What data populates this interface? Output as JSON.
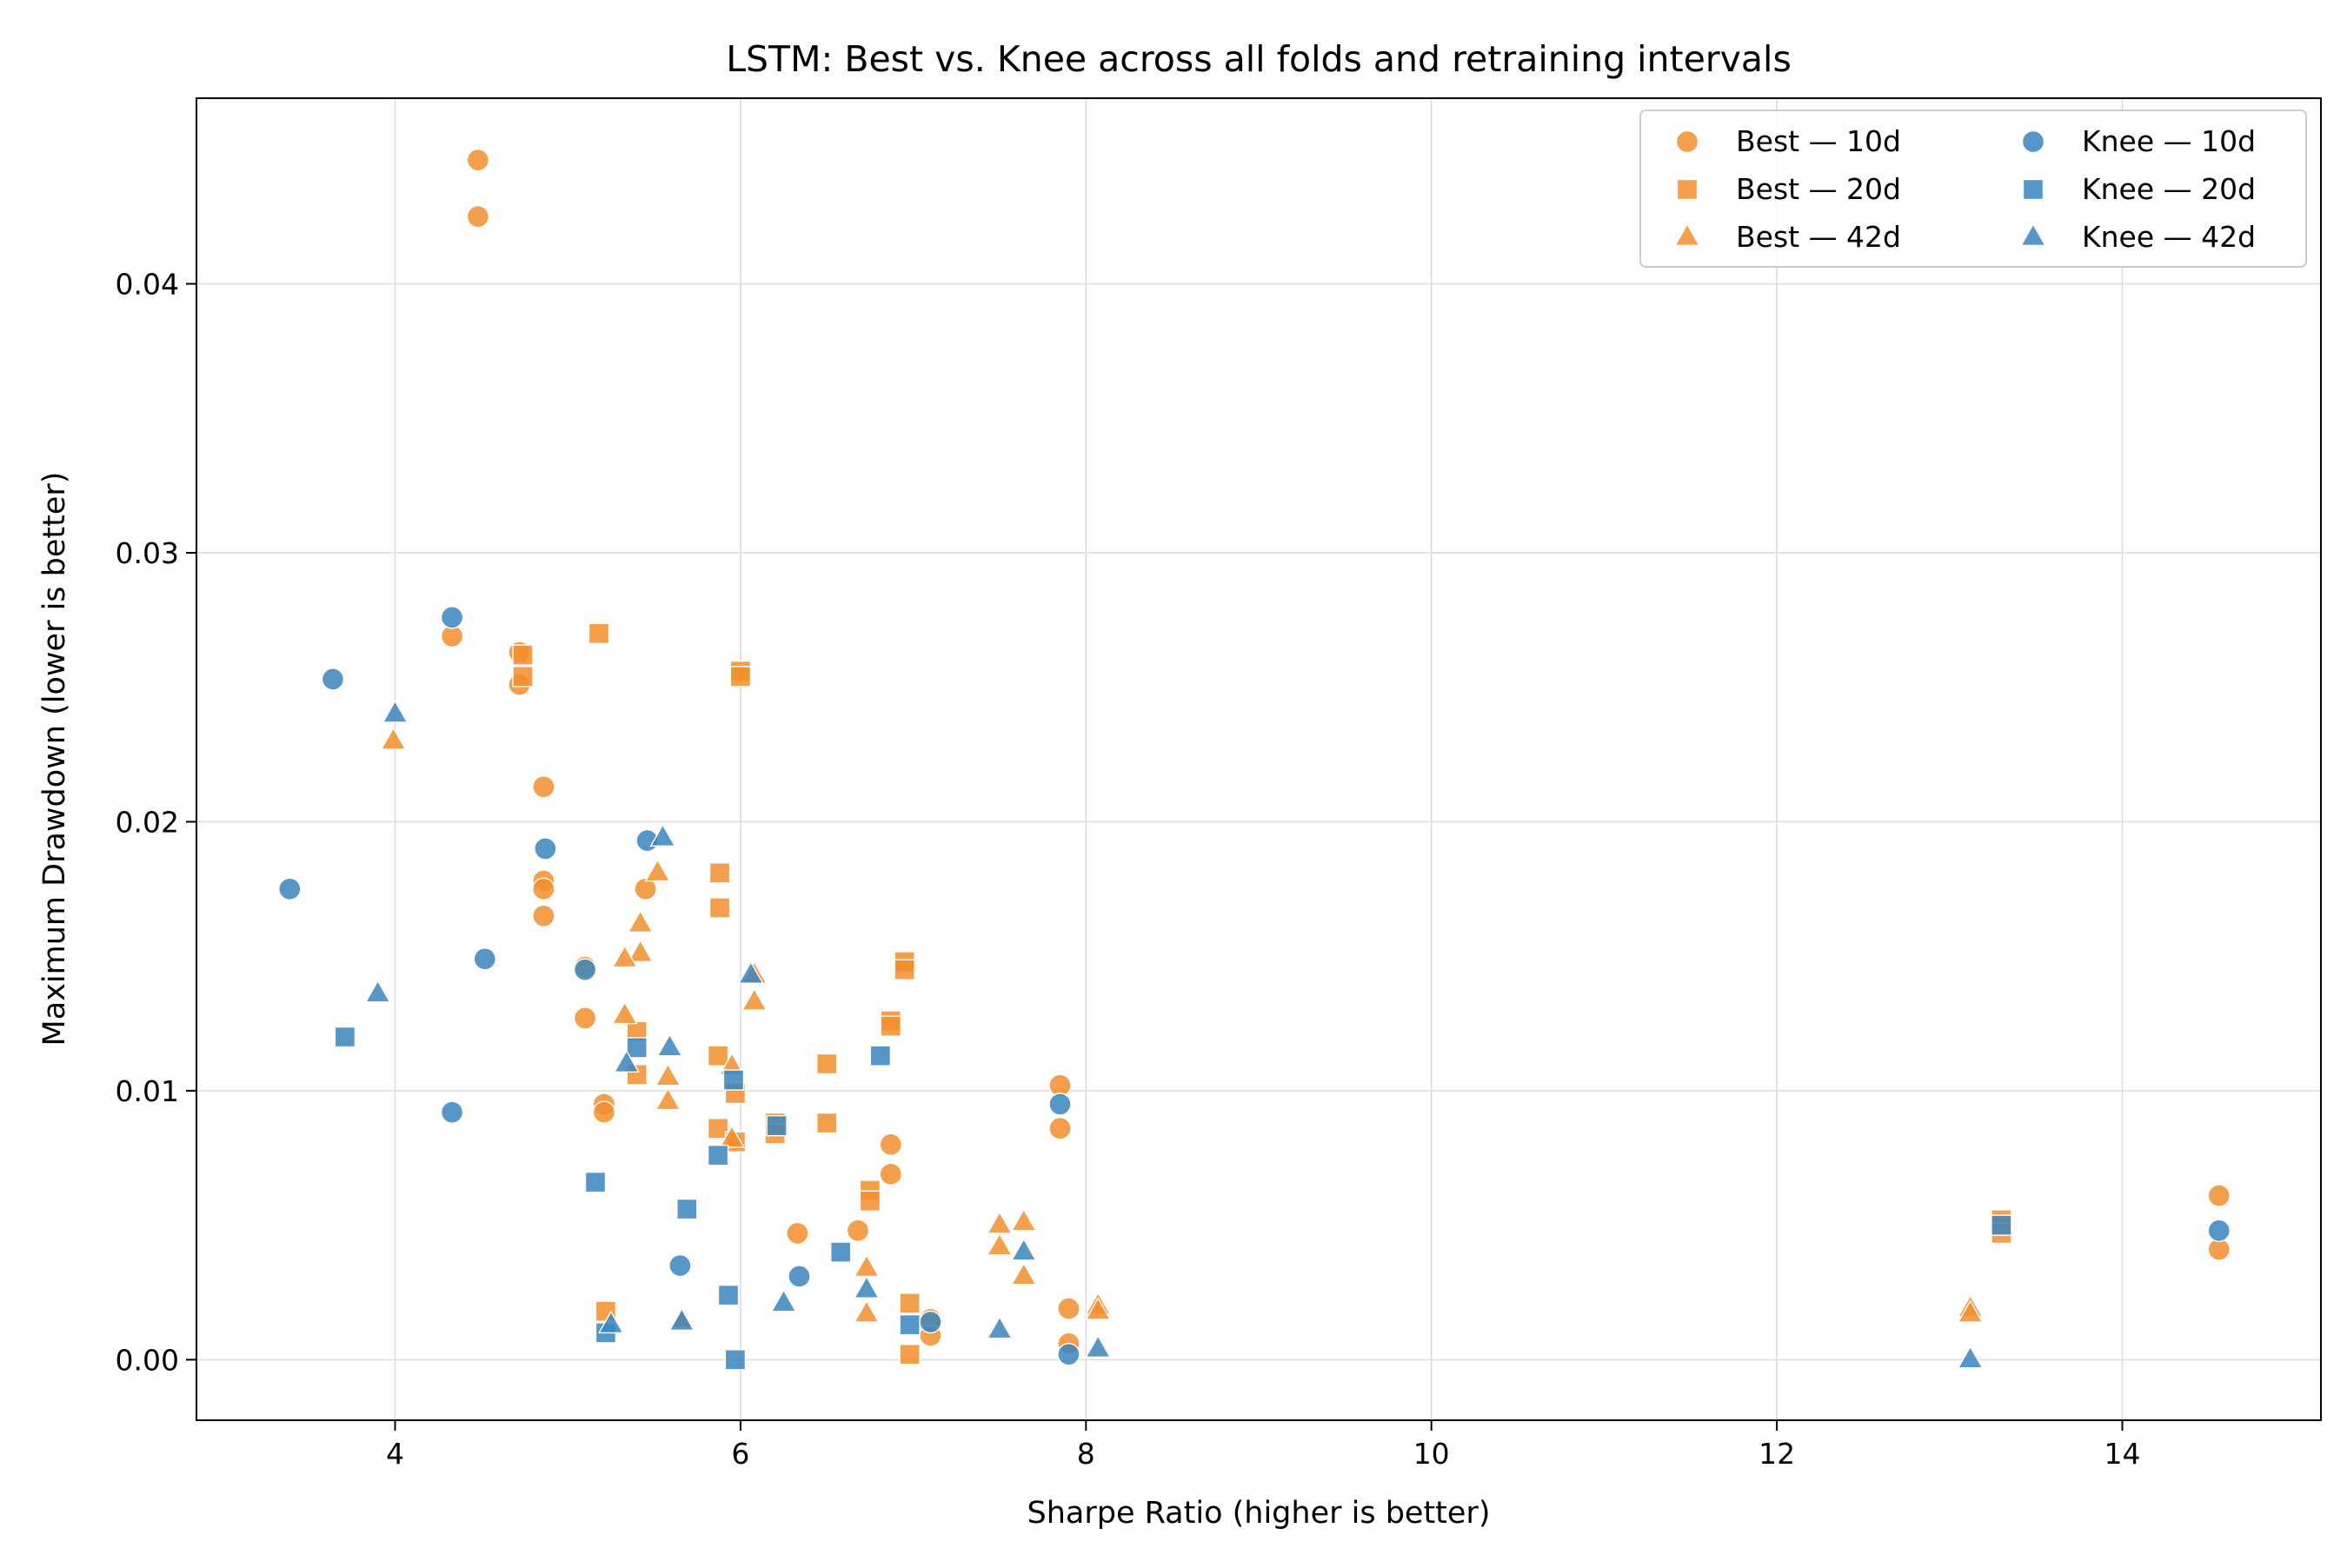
{
  "chart_data": {
    "type": "scatter",
    "title": "LSTM: Best vs. Knee across all folds and retraining intervals",
    "xlabel": "Sharpe Ratio (higher is better)",
    "ylabel": "Maximum Drawdown (lower is better)",
    "xlim": [
      2.85,
      15.15
    ],
    "ylim": [
      -0.00225,
      0.0469
    ],
    "xticks": [
      4,
      6,
      8,
      10,
      12,
      14
    ],
    "yticks": [
      0.0,
      0.01,
      0.02,
      0.03,
      0.04
    ],
    "xtick_labels": [
      "4",
      "6",
      "8",
      "10",
      "12",
      "14"
    ],
    "ytick_labels": [
      "0.00",
      "0.01",
      "0.02",
      "0.03",
      "0.04"
    ],
    "grid": true,
    "legend_position": "top-right",
    "colors": {
      "best": "#f28e2b",
      "knee": "#3a85bd"
    },
    "series": [
      {
        "name": "Best — 10d",
        "marker": "circle",
        "color": "#f28e2b",
        "points": [
          [
            4.48,
            0.0446
          ],
          [
            4.48,
            0.0425
          ],
          [
            4.33,
            0.0269
          ],
          [
            4.72,
            0.0263
          ],
          [
            4.72,
            0.0251
          ],
          [
            4.86,
            0.0213
          ],
          [
            4.86,
            0.0178
          ],
          [
            4.86,
            0.0175
          ],
          [
            4.86,
            0.0165
          ],
          [
            5.45,
            0.0175
          ],
          [
            5.1,
            0.0146
          ],
          [
            5.1,
            0.0127
          ],
          [
            5.21,
            0.0095
          ],
          [
            5.21,
            0.0092
          ],
          [
            6.33,
            0.0047
          ],
          [
            6.68,
            0.0048
          ],
          [
            6.87,
            0.008
          ],
          [
            6.87,
            0.0069
          ],
          [
            7.85,
            0.0102
          ],
          [
            7.85,
            0.0086
          ],
          [
            7.9,
            0.0019
          ],
          [
            7.9,
            0.0006
          ],
          [
            7.1,
            0.0015
          ],
          [
            7.1,
            0.0009
          ],
          [
            14.56,
            0.0061
          ],
          [
            14.56,
            0.0041
          ]
        ]
      },
      {
        "name": "Best — 20d",
        "marker": "square",
        "color": "#f28e2b",
        "points": [
          [
            5.18,
            0.027
          ],
          [
            4.74,
            0.0262
          ],
          [
            4.74,
            0.0254
          ],
          [
            6.0,
            0.0256
          ],
          [
            6.0,
            0.0254
          ],
          [
            5.88,
            0.0181
          ],
          [
            5.88,
            0.0168
          ],
          [
            5.4,
            0.0122
          ],
          [
            5.4,
            0.0106
          ],
          [
            5.87,
            0.0113
          ],
          [
            5.87,
            0.0086
          ],
          [
            5.97,
            0.0099
          ],
          [
            5.97,
            0.0081
          ],
          [
            6.2,
            0.0088
          ],
          [
            6.2,
            0.0084
          ],
          [
            6.5,
            0.011
          ],
          [
            6.5,
            0.0088
          ],
          [
            6.75,
            0.0063
          ],
          [
            6.75,
            0.0059
          ],
          [
            6.87,
            0.0126
          ],
          [
            6.87,
            0.0124
          ],
          [
            6.95,
            0.0148
          ],
          [
            6.95,
            0.0145
          ],
          [
            6.98,
            0.0021
          ],
          [
            6.98,
            0.0002
          ],
          [
            5.22,
            0.0018
          ],
          [
            13.3,
            0.0052
          ],
          [
            13.3,
            0.0047
          ]
        ]
      },
      {
        "name": "Best — 42d",
        "marker": "triangle",
        "color": "#f28e2b",
        "points": [
          [
            3.99,
            0.023
          ],
          [
            5.52,
            0.0181
          ],
          [
            5.42,
            0.0162
          ],
          [
            5.42,
            0.0151
          ],
          [
            5.33,
            0.0149
          ],
          [
            5.33,
            0.0128
          ],
          [
            5.58,
            0.0105
          ],
          [
            5.58,
            0.0096
          ],
          [
            5.95,
            0.0109
          ],
          [
            5.95,
            0.0082
          ],
          [
            6.08,
            0.0143
          ],
          [
            6.08,
            0.0133
          ],
          [
            7.5,
            0.005
          ],
          [
            7.5,
            0.0042
          ],
          [
            7.64,
            0.0051
          ],
          [
            7.64,
            0.0031
          ],
          [
            6.73,
            0.0034
          ],
          [
            6.73,
            0.0017
          ],
          [
            8.07,
            0.002
          ],
          [
            8.07,
            0.0018
          ],
          [
            13.12,
            0.0019
          ],
          [
            13.12,
            0.0017
          ],
          [
            5.66,
            0.0015
          ]
        ]
      },
      {
        "name": "Knee — 10d",
        "marker": "circle",
        "color": "#3a85bd",
        "points": [
          [
            3.39,
            0.0175
          ],
          [
            3.64,
            0.0253
          ],
          [
            4.33,
            0.0276
          ],
          [
            4.33,
            0.0092
          ],
          [
            4.52,
            0.0149
          ],
          [
            4.87,
            0.019
          ],
          [
            5.1,
            0.0145
          ],
          [
            5.46,
            0.0193
          ],
          [
            5.65,
            0.0035
          ],
          [
            6.34,
            0.0031
          ],
          [
            7.1,
            0.0014
          ],
          [
            7.85,
            0.0095
          ],
          [
            7.9,
            0.0002
          ],
          [
            14.56,
            0.0048
          ]
        ]
      },
      {
        "name": "Knee — 20d",
        "marker": "square",
        "color": "#3a85bd",
        "points": [
          [
            3.71,
            0.012
          ],
          [
            5.16,
            0.0066
          ],
          [
            5.22,
            0.001
          ],
          [
            5.4,
            0.0116
          ],
          [
            5.69,
            0.0056
          ],
          [
            5.87,
            0.0076
          ],
          [
            5.93,
            0.0024
          ],
          [
            5.96,
            0.0104
          ],
          [
            5.97,
            0.0
          ],
          [
            6.21,
            0.0087
          ],
          [
            6.58,
            0.004
          ],
          [
            6.81,
            0.0113
          ],
          [
            6.98,
            0.0013
          ],
          [
            13.3,
            0.005
          ]
        ]
      },
      {
        "name": "Knee — 42d",
        "marker": "triangle",
        "color": "#3a85bd",
        "points": [
          [
            3.9,
            0.0136
          ],
          [
            4.0,
            0.024
          ],
          [
            5.25,
            0.0013
          ],
          [
            5.34,
            0.011
          ],
          [
            5.55,
            0.0194
          ],
          [
            5.59,
            0.0116
          ],
          [
            5.66,
            0.0014
          ],
          [
            6.06,
            0.0143
          ],
          [
            6.25,
            0.0021
          ],
          [
            6.73,
            0.0026
          ],
          [
            7.5,
            0.0011
          ],
          [
            7.64,
            0.004
          ],
          [
            8.07,
            0.0004
          ],
          [
            13.12,
            0.0
          ]
        ]
      }
    ]
  }
}
